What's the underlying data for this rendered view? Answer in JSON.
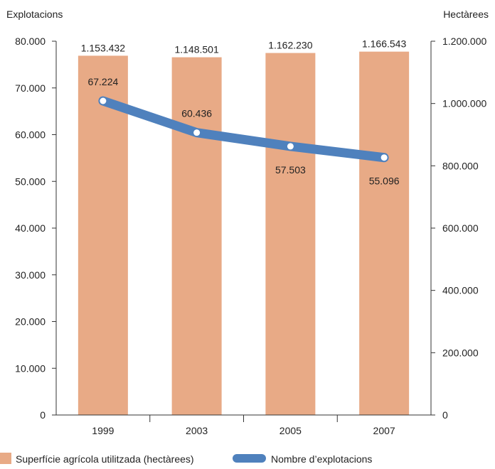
{
  "chart_data": {
    "type": "bar",
    "categories": [
      "1999",
      "2003",
      "2005",
      "2007"
    ],
    "left_axis": {
      "title": "Explotacions",
      "ylim": [
        0,
        80000
      ],
      "ticks": [
        0,
        10000,
        20000,
        30000,
        40000,
        50000,
        60000,
        70000,
        80000
      ],
      "tick_labels": [
        "0",
        "10.000",
        "20.000",
        "30.000",
        "40.000",
        "50.000",
        "60.000",
        "70.000",
        "80.000"
      ]
    },
    "right_axis": {
      "title": "Hectàrees",
      "ylim": [
        0,
        1200000
      ],
      "ticks": [
        0,
        200000,
        400000,
        600000,
        800000,
        1000000,
        1200000
      ],
      "tick_labels": [
        "0",
        "200.000",
        "400.000",
        "600.000",
        "800.000",
        "1.000.000",
        "1.200.000"
      ]
    },
    "series": [
      {
        "name": "Superfície agrícola utilitzada (hectàrees)",
        "type": "bar",
        "axis": "right",
        "color": "#e8aa86",
        "values": [
          1153432,
          1148501,
          1162230,
          1166543
        ],
        "labels": [
          "1.153.432",
          "1.148.501",
          "1.162.230",
          "1.166.543"
        ]
      },
      {
        "name": "Nombre d’explotacions",
        "type": "line",
        "axis": "left",
        "color": "#4f81bd",
        "values": [
          67224,
          60436,
          57503,
          55096
        ],
        "labels": [
          "67.224",
          "60.436",
          "57.503",
          "55.096"
        ]
      }
    ],
    "legend_position": "bottom-left",
    "grid": false
  }
}
